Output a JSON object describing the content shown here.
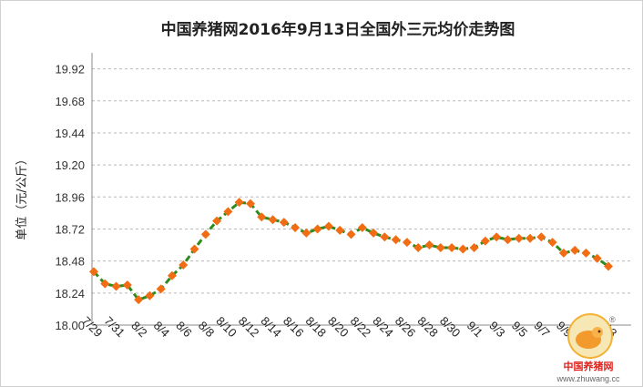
{
  "chart_data": {
    "type": "line",
    "title": "中国养猪网2016年9月13日全国外三元均价走势图",
    "ylabel": "单位（元/公斤）",
    "xlabel": "",
    "ylim": [
      18.0,
      20.04
    ],
    "yticks": [
      18.0,
      18.24,
      18.48,
      18.72,
      18.96,
      19.2,
      19.44,
      19.68,
      19.92
    ],
    "x": [
      "7/29",
      "7/30",
      "7/31",
      "8/1",
      "8/2",
      "8/3",
      "8/4",
      "8/5",
      "8/6",
      "8/7",
      "8/8",
      "8/9",
      "8/10",
      "8/11",
      "8/12",
      "8/13",
      "8/14",
      "8/15",
      "8/16",
      "8/17",
      "8/18",
      "8/19",
      "8/20",
      "8/21",
      "8/22",
      "8/23",
      "8/24",
      "8/25",
      "8/26",
      "8/27",
      "8/28",
      "8/29",
      "8/30",
      "8/31",
      "9/1",
      "9/2",
      "9/3",
      "9/4",
      "9/5",
      "9/6",
      "9/7",
      "9/8",
      "9/9",
      "9/10",
      "9/11",
      "9/12",
      "9/13"
    ],
    "xtick_labels": [
      "7/29",
      "7/31",
      "8/2",
      "8/4",
      "8/6",
      "8/8",
      "8/10",
      "8/12",
      "8/14",
      "8/16",
      "8/18",
      "8/20",
      "8/22",
      "8/24",
      "8/26",
      "8/28",
      "8/30",
      "9/1",
      "9/3",
      "9/5",
      "9/7",
      "9/9",
      "9/11",
      "9/13"
    ],
    "series": [
      {
        "line_color": "#2e8b1e",
        "marker_color": "#f26c13",
        "line_style": "dashed",
        "marker": "diamond",
        "values": [
          18.4,
          18.31,
          18.29,
          18.3,
          18.19,
          18.22,
          18.27,
          18.37,
          18.45,
          18.57,
          18.68,
          18.78,
          18.85,
          18.92,
          18.91,
          18.81,
          18.79,
          18.77,
          18.73,
          18.69,
          18.72,
          18.74,
          18.71,
          18.68,
          18.73,
          18.69,
          18.66,
          18.64,
          18.62,
          18.58,
          18.6,
          18.58,
          18.58,
          18.57,
          18.58,
          18.63,
          18.66,
          18.64,
          18.65,
          18.65,
          18.66,
          18.62,
          18.54,
          18.56,
          18.54,
          18.5,
          18.44
        ]
      }
    ],
    "grid": "horizontal dashed",
    "legend": "none"
  },
  "watermark": {
    "brand_text": "中国养猪网",
    "url": "www.zhuwang.cc",
    "registered": "®"
  }
}
